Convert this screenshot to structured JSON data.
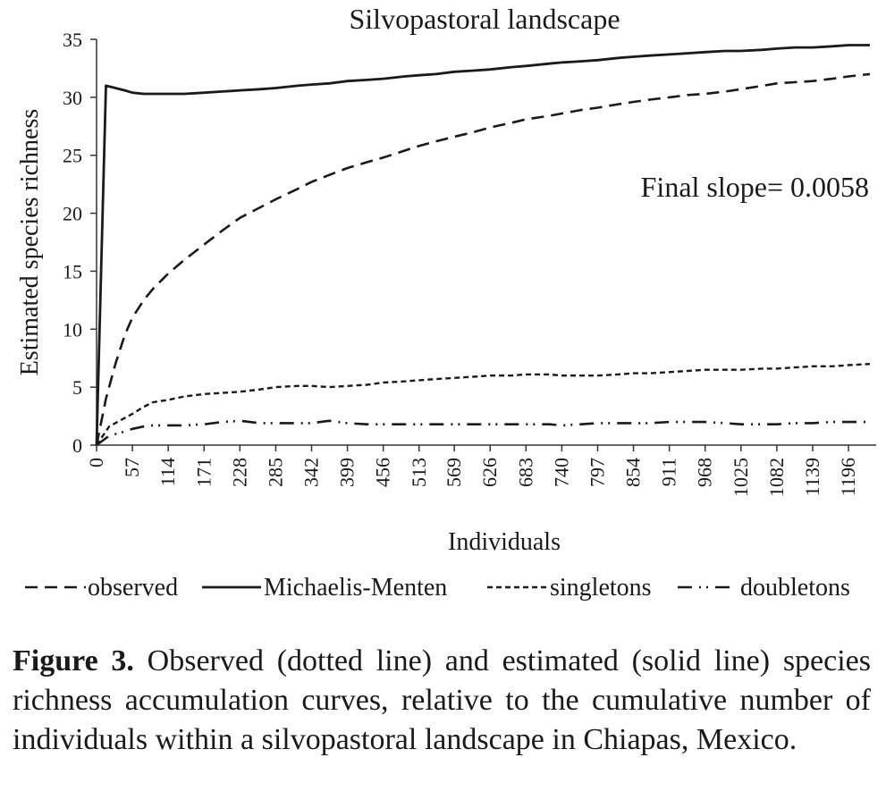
{
  "chart_data": {
    "type": "line",
    "title": "Silvopastoral landscape",
    "xlabel": "Individuals",
    "ylabel": "Estimated species richness",
    "xlim": [
      0,
      1240
    ],
    "ylim": [
      0,
      35
    ],
    "yticks": [
      0,
      5,
      10,
      15,
      20,
      25,
      30,
      35
    ],
    "xtick_labels": [
      "0",
      "57",
      "114",
      "171",
      "228",
      "285",
      "342",
      "399",
      "456",
      "513",
      "569",
      "626",
      "683",
      "740",
      "797",
      "854",
      "911",
      "968",
      "1025",
      "1082",
      "1139",
      "1196"
    ],
    "annotation": "Final slope= 0.0058",
    "grid": false,
    "legend_position": "bottom",
    "series": [
      {
        "name": "observed",
        "style": "dashed",
        "x": [
          0,
          15,
          30,
          45,
          57,
          75,
          90,
          114,
          140,
          171,
          200,
          228,
          260,
          285,
          320,
          342,
          370,
          399,
          430,
          456,
          490,
          513,
          540,
          569,
          600,
          626,
          660,
          683,
          720,
          740,
          770,
          797,
          830,
          854,
          880,
          911,
          940,
          968,
          1000,
          1025,
          1060,
          1082,
          1110,
          1139,
          1170,
          1196,
          1230
        ],
        "y": [
          0,
          4,
          7,
          9.5,
          11,
          12.5,
          13.5,
          14.8,
          16,
          17.3,
          18.5,
          19.6,
          20.5,
          21.2,
          22.1,
          22.7,
          23.3,
          23.9,
          24.4,
          24.8,
          25.4,
          25.8,
          26.2,
          26.6,
          27.0,
          27.4,
          27.8,
          28.1,
          28.4,
          28.6,
          28.9,
          29.1,
          29.4,
          29.6,
          29.8,
          30.0,
          30.2,
          30.3,
          30.5,
          30.7,
          31.0,
          31.2,
          31.3,
          31.4,
          31.6,
          31.8,
          32.0
        ]
      },
      {
        "name": "Michaelis-Menten",
        "style": "solid",
        "x": [
          0,
          15,
          30,
          45,
          57,
          75,
          90,
          114,
          140,
          171,
          200,
          228,
          260,
          285,
          320,
          342,
          370,
          399,
          430,
          456,
          490,
          513,
          540,
          569,
          600,
          626,
          660,
          683,
          720,
          740,
          770,
          797,
          830,
          854,
          880,
          911,
          940,
          968,
          1000,
          1025,
          1060,
          1082,
          1110,
          1139,
          1170,
          1196,
          1230
        ],
        "y": [
          0,
          31,
          30.8,
          30.6,
          30.4,
          30.3,
          30.3,
          30.3,
          30.3,
          30.4,
          30.5,
          30.6,
          30.7,
          30.8,
          31.0,
          31.1,
          31.2,
          31.4,
          31.5,
          31.6,
          31.8,
          31.9,
          32.0,
          32.2,
          32.3,
          32.4,
          32.6,
          32.7,
          32.9,
          33.0,
          33.1,
          33.2,
          33.4,
          33.5,
          33.6,
          33.7,
          33.8,
          33.9,
          34.0,
          34.0,
          34.1,
          34.2,
          34.3,
          34.3,
          34.4,
          34.5,
          34.5
        ]
      },
      {
        "name": "singletons",
        "style": "fine-dashed",
        "x": [
          0,
          20,
          40,
          57,
          75,
          90,
          114,
          140,
          171,
          200,
          228,
          260,
          285,
          320,
          342,
          370,
          399,
          430,
          456,
          490,
          513,
          540,
          569,
          600,
          626,
          660,
          683,
          720,
          740,
          770,
          797,
          830,
          854,
          880,
          911,
          940,
          968,
          1000,
          1025,
          1060,
          1082,
          1110,
          1139,
          1170,
          1196,
          1230
        ],
        "y": [
          0,
          1.6,
          2.2,
          2.7,
          3.3,
          3.7,
          3.9,
          4.2,
          4.4,
          4.5,
          4.6,
          4.8,
          5.0,
          5.1,
          5.1,
          5.0,
          5.1,
          5.2,
          5.4,
          5.5,
          5.6,
          5.7,
          5.8,
          5.9,
          6.0,
          6.0,
          6.1,
          6.1,
          6.0,
          6.0,
          6.0,
          6.1,
          6.2,
          6.2,
          6.3,
          6.4,
          6.5,
          6.5,
          6.5,
          6.6,
          6.6,
          6.7,
          6.8,
          6.8,
          6.9,
          7.0
        ]
      },
      {
        "name": "doubletons",
        "style": "dash-dot-dot",
        "x": [
          0,
          20,
          40,
          57,
          75,
          90,
          114,
          140,
          171,
          200,
          228,
          260,
          285,
          320,
          342,
          370,
          399,
          430,
          456,
          490,
          513,
          540,
          569,
          600,
          626,
          660,
          683,
          720,
          740,
          770,
          797,
          830,
          854,
          880,
          911,
          940,
          968,
          1000,
          1025,
          1060,
          1082,
          1110,
          1139,
          1170,
          1196,
          1230
        ],
        "y": [
          0,
          0.8,
          1.1,
          1.4,
          1.6,
          1.7,
          1.7,
          1.7,
          1.8,
          2.0,
          2.1,
          1.9,
          1.9,
          1.9,
          1.9,
          2.1,
          1.9,
          1.8,
          1.8,
          1.8,
          1.8,
          1.8,
          1.8,
          1.8,
          1.8,
          1.8,
          1.8,
          1.8,
          1.7,
          1.8,
          1.9,
          1.9,
          1.9,
          1.9,
          2.0,
          2.0,
          2.0,
          1.9,
          1.8,
          1.8,
          1.8,
          1.9,
          1.9,
          2.0,
          2.0,
          2.0
        ]
      }
    ]
  },
  "caption": {
    "label": "Figure 3.",
    "text": " Observed (dotted line) and estimated (solid line) species richness accumulation curves, relative to the cumulative number of individuals within a silvopastoral landscape in Chiapas, Mexico."
  }
}
